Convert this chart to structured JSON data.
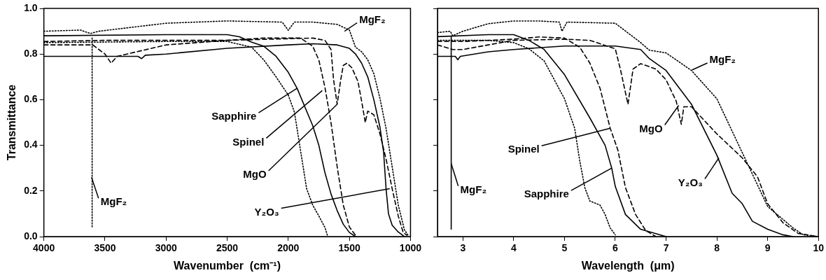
{
  "chart_data": [
    {
      "type": "line",
      "xlabel": "Wavenumber  (cm⁻¹)",
      "ylabel": "Transmittance",
      "xlim": [
        4000,
        1000
      ],
      "xticks": [
        4000,
        3500,
        3000,
        2500,
        2000,
        1500,
        1000
      ],
      "ylim": [
        0,
        1
      ],
      "yticks": [
        {
          "value": 0,
          "label": "0.0"
        },
        {
          "value": 0.2,
          "label": "0.2"
        },
        {
          "value": 0.4,
          "label": "0.4"
        },
        {
          "value": 0.6,
          "label": "0.6"
        },
        {
          "value": 0.8,
          "label": "0.8"
        },
        {
          "value": 1,
          "label": "1.0"
        }
      ],
      "grid": false,
      "legend": false,
      "marker": "none",
      "series": [
        {
          "color": "#000000",
          "line_style": "dotted",
          "x": [
            4000,
            3700,
            3620,
            3550,
            3000,
            2500,
            2050,
            2000,
            1950,
            1800,
            1600,
            1500,
            1450,
            1400,
            1350,
            1300,
            1250,
            1200,
            1150,
            1100,
            1050,
            1020
          ],
          "values": [
            0.9,
            0.905,
            0.89,
            0.9,
            0.935,
            0.945,
            0.94,
            0.904,
            0.94,
            0.94,
            0.93,
            0.905,
            0.83,
            0.81,
            0.775,
            0.714,
            0.606,
            0.474,
            0.306,
            0.138,
            0.03,
            0.006
          ]
        },
        {
          "color": "#000000",
          "line_style": "dotted",
          "x": [
            3605,
            3605
          ],
          "values": [
            0.87,
            0.04
          ]
        },
        {
          "color": "#000000",
          "line_style": "dotted",
          "x": [
            4000,
            3000,
            2500,
            2300,
            2200,
            2100,
            2000,
            1950,
            1900,
            1850,
            1800,
            1750,
            1700,
            1680
          ],
          "values": [
            0.85,
            0.855,
            0.855,
            0.83,
            0.774,
            0.7,
            0.62,
            0.546,
            0.378,
            0.21,
            0.138,
            0.09,
            0.04,
            0.006
          ]
        },
        {
          "color": "#000000",
          "line_style": "solid",
          "x": [
            4000,
            3000,
            2500,
            2400,
            2300,
            2200,
            2100,
            2000,
            1928,
            1800,
            1750,
            1700,
            1650,
            1600,
            1550,
            1500,
            1450
          ],
          "values": [
            0.88,
            0.885,
            0.885,
            0.876,
            0.852,
            0.834,
            0.79,
            0.72,
            0.65,
            0.486,
            0.4,
            0.28,
            0.186,
            0.114,
            0.054,
            0.018,
            0
          ]
        },
        {
          "color": "#000000",
          "line_style": "dashed",
          "x": [
            4000,
            3500,
            3000,
            2500,
            2200,
            1900,
            1800,
            1750,
            1700,
            1650,
            1600,
            1550,
            1500,
            1450
          ],
          "values": [
            0.855,
            0.86,
            0.86,
            0.86,
            0.87,
            0.87,
            0.834,
            0.774,
            0.654,
            0.498,
            0.306,
            0.138,
            0.042,
            0.006
          ]
        },
        {
          "color": "#000000",
          "line_style": "dashed",
          "x": [
            4000,
            3600,
            3500,
            3450,
            3400,
            3000,
            2500,
            1800,
            1700,
            1650,
            1630,
            1600,
            1570,
            1550,
            1520,
            1480,
            1430,
            1400,
            1370,
            1350,
            1300,
            1250,
            1200,
            1150,
            1100,
            1060,
            1030
          ],
          "values": [
            0.84,
            0.84,
            0.8,
            0.76,
            0.79,
            0.84,
            0.86,
            0.87,
            0.86,
            0.82,
            0.69,
            0.58,
            0.69,
            0.75,
            0.76,
            0.74,
            0.68,
            0.594,
            0.5,
            0.55,
            0.534,
            0.45,
            0.34,
            0.21,
            0.09,
            0.018,
            0.006
          ]
        },
        {
          "color": "#000000",
          "line_style": "solid",
          "x": [
            4000,
            3500,
            3230,
            3200,
            3170,
            3000,
            2500,
            2000,
            1800,
            1600,
            1500,
            1450,
            1400,
            1350,
            1300,
            1250,
            1220,
            1200,
            1180,
            1150,
            1100,
            1050
          ],
          "values": [
            0.79,
            0.79,
            0.79,
            0.78,
            0.795,
            0.8,
            0.825,
            0.84,
            0.845,
            0.84,
            0.825,
            0.8,
            0.76,
            0.7,
            0.6,
            0.48,
            0.37,
            0.21,
            0.1,
            0.05,
            0.02,
            0
          ]
        }
      ],
      "annotations": [
        {
          "text": "MgF₂",
          "x": 1540,
          "y": 0.9
        },
        {
          "text": "Sapphire",
          "x": 1928,
          "y": 0.65
        },
        {
          "text": "Spinel",
          "x": 1722,
          "y": 0.64
        },
        {
          "text": "MgO",
          "x": 1600,
          "y": 0.58
        },
        {
          "text": "MgF₂",
          "x": 3610,
          "y": 0.26
        },
        {
          "text": "Y₂O₃",
          "x": 1170,
          "y": 0.21
        }
      ]
    },
    {
      "type": "line",
      "xlabel": "Wavelength  (μm)",
      "xlim": [
        2.5,
        10
      ],
      "xticks": [
        3,
        4,
        5,
        6,
        7,
        8,
        9,
        10
      ],
      "ylim": [
        0,
        1
      ],
      "yticks": [
        0,
        0.2,
        0.4,
        0.6,
        0.8,
        1
      ],
      "tick_labels": "x",
      "grid": false,
      "legend": false,
      "marker": "none",
      "series": [
        {
          "color": "#000000",
          "line_style": "dotted",
          "x": [
            2.5,
            2.75,
            2.8,
            3.0,
            3.5,
            4,
            4.5,
            4.9,
            4.95,
            5.05,
            6,
            6.5,
            6.67,
            7,
            7.5,
            8,
            8.5,
            9,
            9.5,
            9.7,
            10
          ],
          "values": [
            0.894,
            0.9,
            0.88,
            0.9,
            0.933,
            0.945,
            0.945,
            0.94,
            0.9,
            0.94,
            0.935,
            0.85,
            0.817,
            0.805,
            0.728,
            0.604,
            0.368,
            0.132,
            0.038,
            0.008,
            0
          ]
        },
        {
          "color": "#000000",
          "line_style": "solid",
          "x": [
            2.77,
            2.77
          ],
          "values": [
            0.876,
            0.032
          ]
        },
        {
          "color": "#000000",
          "line_style": "dotted",
          "x": [
            2.5,
            3.5,
            4,
            4.3,
            4.6,
            4.8,
            5.0,
            5.2,
            5.3,
            5.4,
            5.5,
            5.7,
            5.8,
            5.9,
            6.0
          ],
          "values": [
            0.86,
            0.86,
            0.85,
            0.823,
            0.77,
            0.687,
            0.604,
            0.475,
            0.333,
            0.215,
            0.156,
            0.138,
            0.097,
            0.038,
            0.008
          ]
        },
        {
          "color": "#000000",
          "line_style": "solid",
          "x": [
            2.5,
            3.5,
            4,
            4.3,
            4.6,
            5,
            5.5,
            5.8,
            5.93,
            6,
            6.2,
            6.5,
            7
          ],
          "values": [
            0.876,
            0.885,
            0.885,
            0.86,
            0.82,
            0.71,
            0.52,
            0.4,
            0.3,
            0.22,
            0.097,
            0.032,
            0
          ]
        },
        {
          "color": "#000000",
          "line_style": "dashed",
          "x": [
            2.5,
            3,
            4,
            4.5,
            5,
            5.3,
            5.5,
            5.7,
            5.9,
            6.05,
            6.2,
            6.4,
            6.6,
            6.8
          ],
          "values": [
            0.855,
            0.855,
            0.865,
            0.875,
            0.87,
            0.83,
            0.76,
            0.65,
            0.475,
            0.38,
            0.215,
            0.097,
            0.026,
            0
          ]
        },
        {
          "color": "#000000",
          "line_style": "dashed",
          "x": [
            2.5,
            2.8,
            3,
            3.5,
            4,
            5,
            5.5,
            6,
            6.1,
            6.25,
            6.35,
            6.5,
            6.8,
            7,
            7.2,
            7.3,
            7.35,
            7.5,
            8,
            8.5,
            8.8,
            9,
            9.3,
            9.6,
            10
          ],
          "values": [
            0.84,
            0.82,
            0.82,
            0.84,
            0.86,
            0.865,
            0.86,
            0.823,
            0.734,
            0.58,
            0.734,
            0.758,
            0.734,
            0.687,
            0.593,
            0.492,
            0.569,
            0.569,
            0.45,
            0.345,
            0.262,
            0.144,
            0.061,
            0.014,
            0
          ]
        },
        {
          "color": "#000000",
          "line_style": "solid",
          "x": [
            2.5,
            2.85,
            2.9,
            2.95,
            3.5,
            4,
            5,
            6,
            6.5,
            6.67,
            7,
            7.5,
            8,
            8.3,
            8.5,
            8.7,
            9,
            9.3,
            9.5
          ],
          "values": [
            0.79,
            0.79,
            0.775,
            0.79,
            0.81,
            0.82,
            0.835,
            0.835,
            0.82,
            0.78,
            0.728,
            0.58,
            0.357,
            0.19,
            0.144,
            0.067,
            0.032,
            0.008,
            0
          ]
        }
      ],
      "annotations": [
        {
          "text": "MgF₂",
          "x": 7.51,
          "y": 0.73
        },
        {
          "text": "Spinel",
          "x": 5.9,
          "y": 0.475
        },
        {
          "text": "Sapphire",
          "x": 5.93,
          "y": 0.3
        },
        {
          "text": "MgO",
          "x": 7.25,
          "y": 0.575
        },
        {
          "text": "Y₂O₃",
          "x": 8.04,
          "y": 0.345
        },
        {
          "text": "MgF₂",
          "x": 2.77,
          "y": 0.32
        }
      ]
    }
  ]
}
